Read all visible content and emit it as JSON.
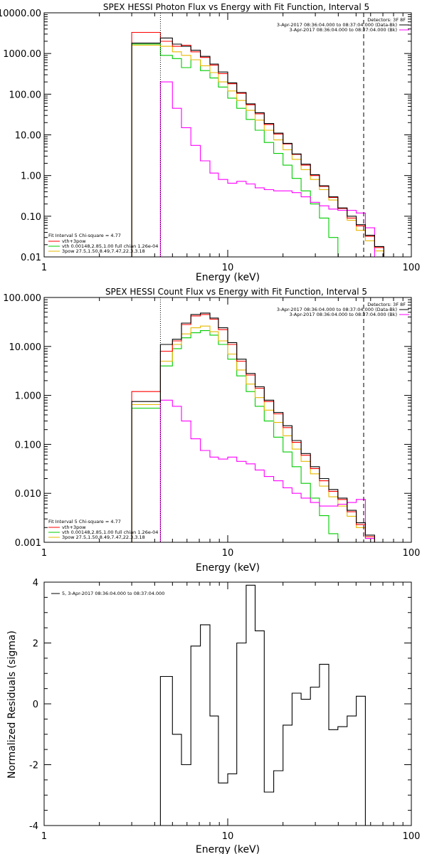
{
  "colors": {
    "total": "#000000",
    "thermal_plus_nonthermal": "#ff0000",
    "thermal": "#00cc00",
    "nonthermal": "#e6b800",
    "background": "#ff00ff"
  },
  "chart_data": [
    {
      "type": "line",
      "title": "SPEX HESSI Photon Flux vs Energy with Fit Function, Interval 5",
      "xlabel": "Energy (keV)",
      "ylabel": "",
      "xscale": "log",
      "yscale": "log",
      "xlim": [
        1,
        100
      ],
      "ylim": [
        0.01,
        10000
      ],
      "xtick_labels": [
        "1",
        "10",
        "100"
      ],
      "ytick_labels": [
        "0.01",
        "0.10",
        "1.00",
        "10.00",
        "100.00",
        "1000.00",
        "10000.00"
      ],
      "legend_top_right": [
        "Detectors: 3F 8F",
        "3-Apr-2017 08:36:04.000 to 08:37:04.000 (Data-Bk)",
        "3-Apr-2017 08:36:04.000 to 08:37:04.000 (Bk)"
      ],
      "legend_bottom_left": [
        "Fit Interval 5   Chi-square = 4.77",
        "vth+3pow",
        "vth 0.00148,2.85,1.00  full chian 1.26e-04",
        "3pow 27.5,1.50,8.49,7.47,22.3,3.18"
      ],
      "vlines": [
        {
          "x": 4.3,
          "style": "dotted",
          "color": "#000000"
        },
        {
          "x": 55,
          "style": "dashed",
          "color": "#000000"
        }
      ],
      "bin_edges": [
        3,
        4.3,
        5,
        5.6,
        6.3,
        7.1,
        8,
        8.9,
        10,
        11.2,
        12.6,
        14.1,
        15.8,
        17.8,
        20,
        22.4,
        25.1,
        28.2,
        31.6,
        35.5,
        39.8,
        44.7,
        50.1,
        56.2,
        63.1,
        70.8
      ],
      "series": [
        {
          "key": "total",
          "values": [
            1800,
            2400,
            1700,
            1500,
            1200,
            850,
            550,
            350,
            190,
            110,
            58,
            35,
            19,
            11,
            6.2,
            3.4,
            1.9,
            1.05,
            0.56,
            0.3,
            0.16,
            0.1,
            0.062,
            0.034,
            0.018
          ]
        },
        {
          "key": "thermal_plus_nonthermal",
          "values": [
            3300,
            2000,
            1500,
            1600,
            1100,
            800,
            520,
            320,
            180,
            105,
            55,
            33,
            18,
            10.5,
            6,
            3.3,
            1.8,
            1.0,
            0.54,
            0.29,
            0.155,
            0.09,
            0.058,
            0.032,
            0.017
          ]
        },
        {
          "key": "thermal",
          "values": [
            1700,
            900,
            750,
            450,
            700,
            380,
            250,
            150,
            80,
            45,
            24,
            13,
            6.5,
            3.5,
            1.8,
            0.85,
            0.42,
            0.2,
            0.09,
            0.03,
            0.008
          ]
        },
        {
          "key": "nonthermal",
          "values": [
            1600,
            1500,
            1100,
            900,
            700,
            500,
            340,
            200,
            120,
            70,
            40,
            23,
            13,
            7.5,
            4.3,
            2.5,
            1.4,
            0.8,
            0.45,
            0.25,
            0.14,
            0.08,
            0.045,
            0.025,
            0.014
          ]
        },
        {
          "key": "background",
          "start_edge": 1,
          "values": [
            200,
            45,
            15,
            5.5,
            2.3,
            1.15,
            0.8,
            0.65,
            0.72,
            0.62,
            0.5,
            0.45,
            0.42,
            0.42,
            0.38,
            0.3,
            0.22,
            0.18,
            0.15,
            0.14,
            0.14,
            0.12,
            0.052
          ]
        }
      ]
    },
    {
      "type": "line",
      "title": "SPEX HESSI Count Flux vs Energy with Fit Function, Interval 5",
      "xlabel": "Energy (keV)",
      "ylabel": "",
      "xscale": "log",
      "yscale": "log",
      "xlim": [
        1,
        100
      ],
      "ylim": [
        0.001,
        100
      ],
      "xtick_labels": [
        "1",
        "10",
        "100"
      ],
      "ytick_labels": [
        "0.001",
        "0.010",
        "0.100",
        "1.000",
        "10.000",
        "100.000"
      ],
      "legend_top_right": [
        "Detectors: 3F 8F",
        "3-Apr-2017 08:36:04.000 to 08:37:04.000 (Data-Bk)",
        "3-Apr-2017 08:36:04.000 to 08:37:04.000 (Bk)"
      ],
      "legend_bottom_left": [
        "Fit Interval 5   Chi-square = 4.77",
        "vth+3pow",
        "vth 0.00148,2.85,1.00  full chian 1.26e-04",
        "3pow 27.5,1.50,8.49,7.47,22.3,3.18"
      ],
      "vlines": [
        {
          "x": 4.3,
          "style": "dotted",
          "color": "#000000"
        },
        {
          "x": 55,
          "style": "dashed",
          "color": "#000000"
        }
      ],
      "bin_edges": [
        3,
        4.3,
        5,
        5.6,
        6.3,
        7.1,
        8,
        8.9,
        10,
        11.2,
        12.6,
        14.1,
        15.8,
        17.8,
        20,
        22.4,
        25.1,
        28.2,
        31.6,
        35.5,
        39.8,
        44.7,
        50.1,
        56.2,
        63.1,
        70.8
      ],
      "series": [
        {
          "key": "total",
          "values": [
            0.75,
            11,
            14,
            30,
            45,
            48,
            38,
            24,
            12,
            5.5,
            2.8,
            1.5,
            0.8,
            0.45,
            0.24,
            0.12,
            0.065,
            0.035,
            0.02,
            0.012,
            0.008,
            0.0045,
            0.0025,
            0.0014,
            0.001
          ]
        },
        {
          "key": "thermal_plus_nonthermal",
          "values": [
            1.2,
            8,
            13,
            28,
            42,
            45,
            36,
            22,
            11,
            5,
            2.6,
            1.4,
            0.75,
            0.42,
            0.22,
            0.11,
            0.06,
            0.032,
            0.018,
            0.011,
            0.0075,
            0.0042,
            0.0023,
            0.0013,
            0.001
          ]
        },
        {
          "key": "thermal",
          "values": [
            0.55,
            4,
            9,
            15,
            19,
            21,
            17,
            11,
            5.5,
            2.5,
            1.2,
            0.6,
            0.3,
            0.14,
            0.07,
            0.035,
            0.016,
            0.008,
            0.0035,
            0.0015,
            0.0009
          ]
        },
        {
          "key": "nonthermal",
          "values": [
            0.65,
            5,
            11,
            18,
            24,
            26,
            20,
            13,
            7,
            3.3,
            1.7,
            0.9,
            0.5,
            0.28,
            0.15,
            0.08,
            0.045,
            0.025,
            0.014,
            0.0085,
            0.0055,
            0.0034,
            0.002,
            0.0012,
            0.001
          ]
        },
        {
          "key": "background",
          "start_edge": 1,
          "values": [
            0.8,
            0.6,
            0.3,
            0.13,
            0.075,
            0.055,
            0.05,
            0.055,
            0.045,
            0.04,
            0.03,
            0.022,
            0.018,
            0.013,
            0.01,
            0.008,
            0.0065,
            0.0055,
            0.0055,
            0.006,
            0.0065,
            0.0075,
            0.0012
          ]
        }
      ]
    },
    {
      "type": "line",
      "title": "",
      "xlabel": "Energy (keV)",
      "ylabel": "Normalized Residuals (sigma)",
      "xscale": "log",
      "yscale": "linear",
      "xlim": [
        1,
        100
      ],
      "ylim": [
        -4,
        4
      ],
      "xtick_labels": [
        "1",
        "10",
        "100"
      ],
      "ytick_labels": [
        "-4",
        "-2",
        "0",
        "2",
        "4"
      ],
      "legend_top_left": "5,  3-Apr-2017 08:36:04.000 to 08:37:04.000",
      "bin_edges": [
        4.3,
        5,
        5.6,
        6.3,
        7.1,
        8,
        8.9,
        10,
        11.2,
        12.6,
        14.1,
        15.8,
        17.8,
        20,
        22.4,
        25.1,
        28.2,
        31.6,
        35.5,
        39.8,
        44.7,
        50.1,
        56.2
      ],
      "series": [
        {
          "key": "total",
          "values": [
            0.9,
            -1.0,
            -2.0,
            1.9,
            2.6,
            -0.4,
            -2.6,
            -2.3,
            2.0,
            3.9,
            2.4,
            -2.9,
            -2.2,
            -0.7,
            0.35,
            0.15,
            0.55,
            1.3,
            -0.85,
            -0.75,
            -0.4,
            0.25
          ]
        }
      ]
    }
  ]
}
